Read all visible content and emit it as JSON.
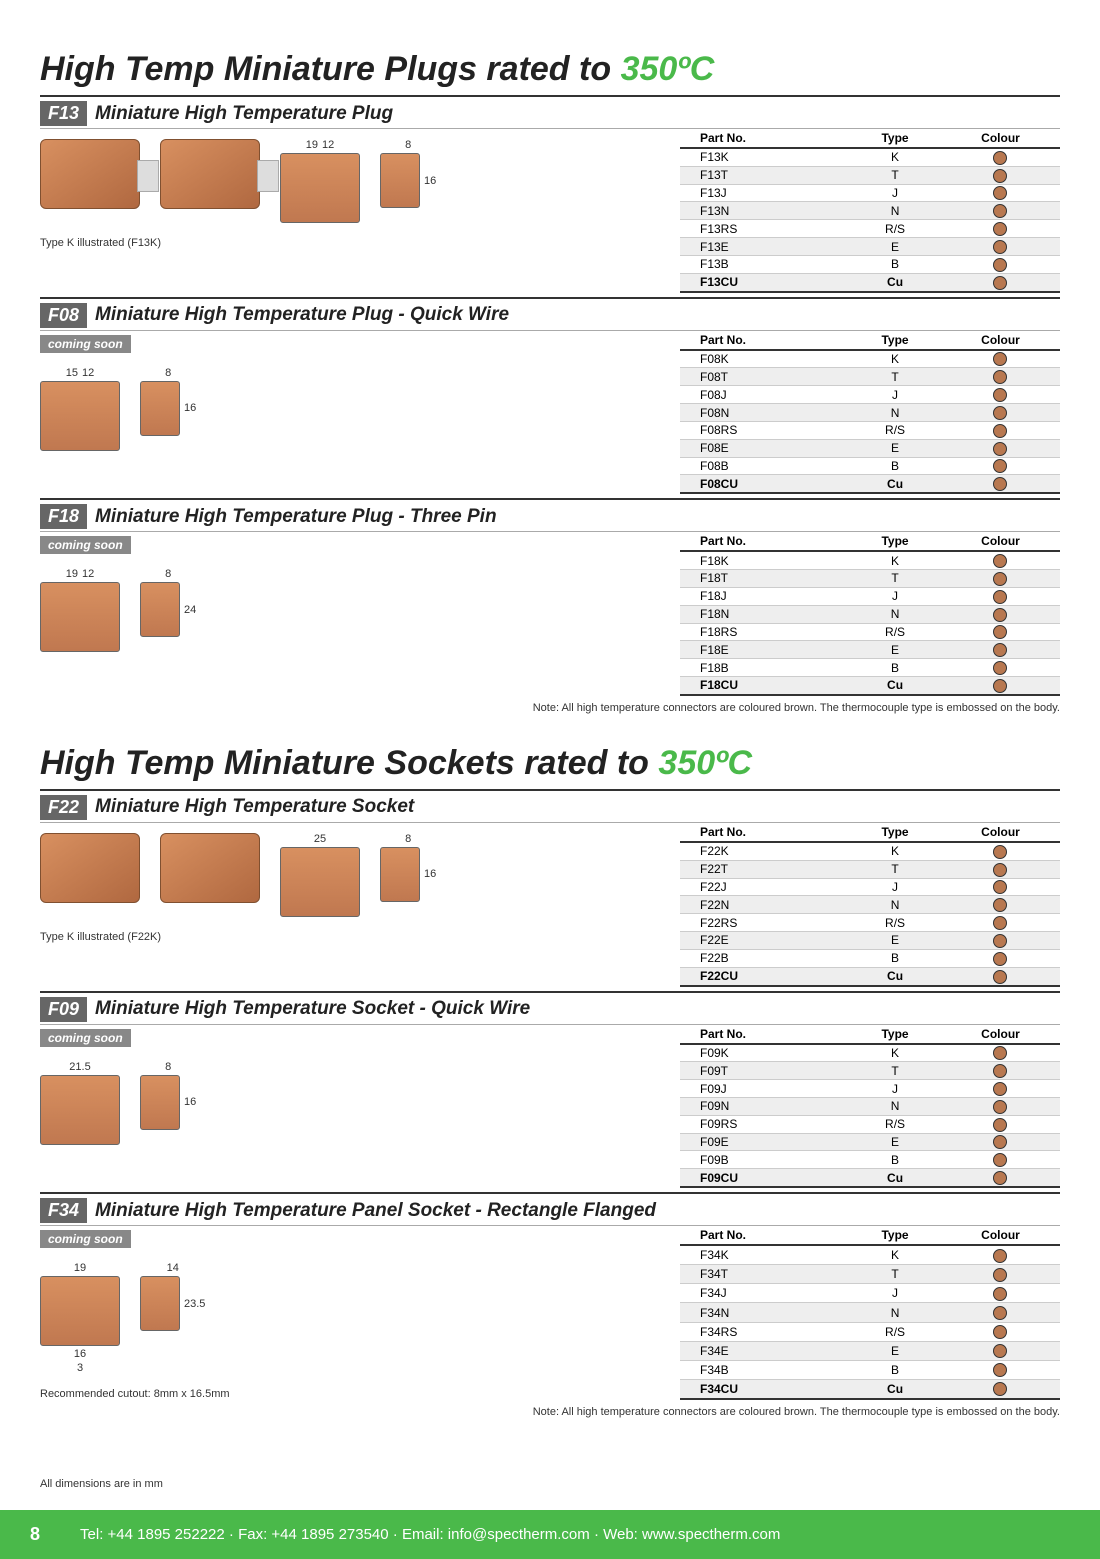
{
  "colors": {
    "green": "#4ab94a",
    "brown_dot": "#b87850",
    "badge_bg": "#666666",
    "footer_bg": "#4ab94a"
  },
  "heading1": {
    "prefix": "High Temp Miniature Plugs rated to ",
    "temp": "350ºC"
  },
  "heading2": {
    "prefix": "High Temp Miniature Sockets rated to ",
    "temp": "350ºC"
  },
  "table_headers": {
    "part": "Part No.",
    "type": "Type",
    "colour": "Colour"
  },
  "coming_soon": "coming soon",
  "note_text": "Note: All high temperature connectors are coloured brown. The thermocouple type is embossed on the body.",
  "footer_note": "All dimensions are in mm",
  "page_number": "8",
  "footer": {
    "tel": "Tel: +44 1895 252222",
    "fax": "Fax: +44 1895 273540",
    "email": "Email: info@spectherm.com",
    "web": "Web: www.spectherm.com",
    "sep": " · "
  },
  "sections": [
    {
      "code": "F13",
      "title": "Miniature High Temperature Plug",
      "coming_soon": false,
      "caption": "Type K illustrated (F13K)",
      "dims": {
        "w1": "19",
        "w2": "12",
        "w3": "8",
        "h": "16"
      },
      "photos": 2,
      "photo_type": "plug",
      "rows": [
        {
          "part": "F13K",
          "type": "K"
        },
        {
          "part": "F13T",
          "type": "T"
        },
        {
          "part": "F13J",
          "type": "J"
        },
        {
          "part": "F13N",
          "type": "N"
        },
        {
          "part": "F13RS",
          "type": "R/S"
        },
        {
          "part": "F13E",
          "type": "E"
        },
        {
          "part": "F13B",
          "type": "B"
        },
        {
          "part": "F13CU",
          "type": "Cu"
        }
      ]
    },
    {
      "code": "F08",
      "title": "Miniature High Temperature Plug - Quick Wire",
      "coming_soon": true,
      "caption": "",
      "dims": {
        "w1": "15",
        "w2": "12",
        "w3": "8",
        "h": "16"
      },
      "photos": 0,
      "photo_type": "plug",
      "rows": [
        {
          "part": "F08K",
          "type": "K"
        },
        {
          "part": "F08T",
          "type": "T"
        },
        {
          "part": "F08J",
          "type": "J"
        },
        {
          "part": "F08N",
          "type": "N"
        },
        {
          "part": "F08RS",
          "type": "R/S"
        },
        {
          "part": "F08E",
          "type": "E"
        },
        {
          "part": "F08B",
          "type": "B"
        },
        {
          "part": "F08CU",
          "type": "Cu"
        }
      ]
    },
    {
      "code": "F18",
      "title": "Miniature High Temperature Plug - Three Pin",
      "coming_soon": true,
      "caption": "",
      "dims": {
        "w1": "19",
        "w2": "12",
        "w3": "8",
        "h": "24"
      },
      "photos": 0,
      "photo_type": "plug",
      "rows": [
        {
          "part": "F18K",
          "type": "K"
        },
        {
          "part": "F18T",
          "type": "T"
        },
        {
          "part": "F18J",
          "type": "J"
        },
        {
          "part": "F18N",
          "type": "N"
        },
        {
          "part": "F18RS",
          "type": "R/S"
        },
        {
          "part": "F18E",
          "type": "E"
        },
        {
          "part": "F18B",
          "type": "B"
        },
        {
          "part": "F18CU",
          "type": "Cu"
        }
      ]
    }
  ],
  "sections2": [
    {
      "code": "F22",
      "title": "Miniature High Temperature Socket",
      "coming_soon": false,
      "caption": "Type K illustrated (F22K)",
      "dims": {
        "w1": "25",
        "w2": "",
        "w3": "8",
        "h": "16"
      },
      "photos": 2,
      "photo_type": "socket",
      "rows": [
        {
          "part": "F22K",
          "type": "K"
        },
        {
          "part": "F22T",
          "type": "T"
        },
        {
          "part": "F22J",
          "type": "J"
        },
        {
          "part": "F22N",
          "type": "N"
        },
        {
          "part": "F22RS",
          "type": "R/S"
        },
        {
          "part": "F22E",
          "type": "E"
        },
        {
          "part": "F22B",
          "type": "B"
        },
        {
          "part": "F22CU",
          "type": "Cu"
        }
      ]
    },
    {
      "code": "F09",
      "title": "Miniature High Temperature Socket - Quick Wire",
      "coming_soon": true,
      "caption": "",
      "dims": {
        "w1": "21.5",
        "w2": "",
        "w3": "8",
        "h": "16"
      },
      "photos": 0,
      "photo_type": "socket",
      "rows": [
        {
          "part": "F09K",
          "type": "K"
        },
        {
          "part": "F09T",
          "type": "T"
        },
        {
          "part": "F09J",
          "type": "J"
        },
        {
          "part": "F09N",
          "type": "N"
        },
        {
          "part": "F09RS",
          "type": "R/S"
        },
        {
          "part": "F09E",
          "type": "E"
        },
        {
          "part": "F09B",
          "type": "B"
        },
        {
          "part": "F09CU",
          "type": "Cu"
        }
      ]
    },
    {
      "code": "F34",
      "title": "Miniature High Temperature Panel Socket - Rectangle Flanged",
      "coming_soon": true,
      "caption": "Recommended cutout: 8mm x 16.5mm",
      "dims": {
        "w1": "19",
        "w2": "",
        "w3": "14",
        "h": "23.5",
        "h2": "16",
        "d": "3"
      },
      "photos": 0,
      "photo_type": "socket",
      "rows": [
        {
          "part": "F34K",
          "type": "K"
        },
        {
          "part": "F34T",
          "type": "T"
        },
        {
          "part": "F34J",
          "type": "J"
        },
        {
          "part": "F34N",
          "type": "N"
        },
        {
          "part": "F34RS",
          "type": "R/S"
        },
        {
          "part": "F34E",
          "type": "E"
        },
        {
          "part": "F34B",
          "type": "B"
        },
        {
          "part": "F34CU",
          "type": "Cu"
        }
      ]
    }
  ]
}
